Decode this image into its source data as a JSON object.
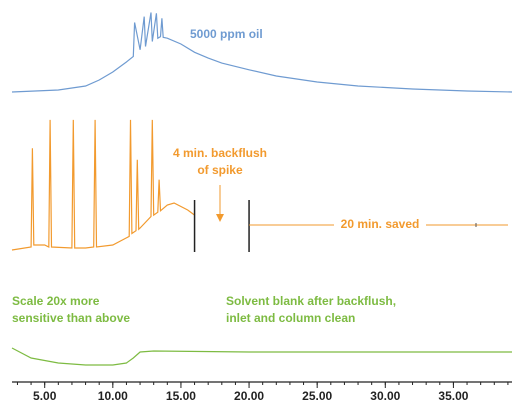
{
  "chart_data": [
    {
      "type": "line",
      "label": "5000 ppm oil",
      "color": "#6f9bd1",
      "xlim": [
        2.6,
        39.3
      ],
      "ylim": [
        0,
        100
      ],
      "x": [
        2.6,
        6,
        8,
        9,
        10,
        11,
        11.5,
        11.6,
        12,
        12.3,
        12.4,
        12.8,
        12.9,
        13.2,
        13.3,
        13.5,
        13.6,
        13.7,
        14,
        15,
        16,
        17,
        18,
        20,
        22,
        25,
        28,
        32,
        36,
        39.3
      ],
      "values": [
        1.2,
        3.6,
        8.4,
        15.7,
        25.3,
        37.3,
        44,
        85,
        52,
        92,
        56,
        97,
        62,
        96,
        66,
        68,
        90,
        67,
        66,
        59,
        49,
        42,
        36,
        28,
        20.5,
        13.3,
        8.4,
        4.8,
        2.4,
        1.2
      ]
    },
    {
      "type": "line",
      "color": "#f29a2e",
      "xlim": [
        2.6,
        39.3
      ],
      "ylim": [
        0,
        100
      ],
      "x": [
        2.6,
        4.0,
        4.1,
        4.2,
        5.0,
        5.3,
        5.4,
        5.5,
        7.0,
        7.1,
        7.2,
        8.0,
        8.6,
        8.7,
        8.8,
        10.0,
        11.0,
        11.2,
        11.3,
        11.4,
        11.7,
        11.8,
        11.9,
        12.0,
        12.8,
        12.9,
        13.0,
        13.3,
        13.4,
        13.5,
        14.0,
        14.5,
        15.5,
        16.0
      ],
      "values": [
        1.4,
        3.5,
        73,
        4.9,
        4.9,
        3.5,
        93,
        3.5,
        2.8,
        93,
        2.8,
        2.8,
        3.5,
        93,
        3.5,
        4.9,
        9.9,
        11,
        93,
        13,
        15,
        65,
        16,
        16.9,
        25,
        93,
        26,
        28,
        51,
        29,
        33,
        34.5,
        29.6,
        26
      ],
      "markers": [
        16,
        20
      ],
      "annotations": [
        {
          "lines": [
            "4 min. backflush",
            "of spike"
          ]
        },
        {
          "lines": [
            "20 min. saved"
          ]
        }
      ]
    },
    {
      "type": "line",
      "color": "#7dbb42",
      "xlim": [
        2.6,
        39.3
      ],
      "ylim": [
        -20,
        20
      ],
      "x": [
        2.6,
        4,
        6,
        8,
        10,
        11,
        11.5,
        12,
        13,
        20,
        30,
        39.3
      ],
      "values": [
        4,
        -6,
        -11,
        -13,
        -13,
        -11,
        -6,
        0,
        1,
        0,
        0,
        0
      ],
      "annotations": [
        {
          "lines": [
            "Scale 20x more",
            "sensitive than above"
          ]
        },
        {
          "lines": [
            "Solvent blank after backflush,",
            "inlet and column clean"
          ]
        }
      ],
      "xticks": [
        {
          "value": 5,
          "label": "5.00"
        },
        {
          "value": 10,
          "label": "10.00"
        },
        {
          "value": 15,
          "label": "15.00"
        },
        {
          "value": 20,
          "label": "20.00"
        },
        {
          "value": 25,
          "label": "25.00"
        },
        {
          "value": 30,
          "label": "30.00"
        },
        {
          "value": 35,
          "label": "35.00"
        }
      ]
    }
  ]
}
